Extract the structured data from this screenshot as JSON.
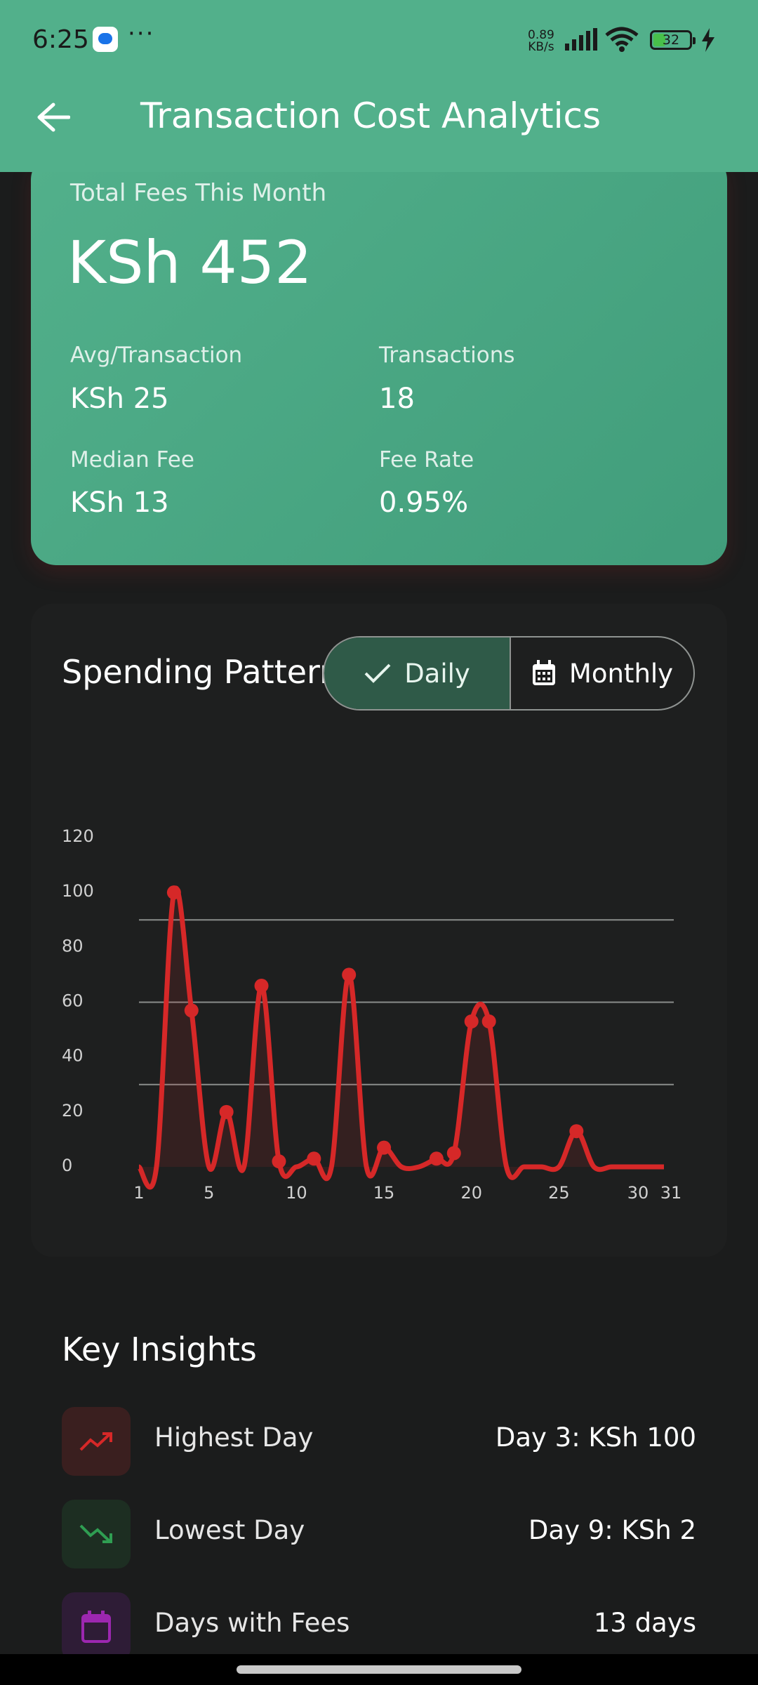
{
  "status_bar": {
    "time": "6:25",
    "more": "···",
    "net_speed_value": "0.89",
    "net_speed_unit": "KB/s",
    "battery": "32"
  },
  "header": {
    "title": "Transaction Cost Analytics"
  },
  "summary": {
    "total_label": "Total Fees This Month",
    "total_value": "KSh 452",
    "avg_label": "Avg/Transaction",
    "avg_value": "KSh 25",
    "count_label": "Transactions",
    "count_value": "18",
    "median_label": "Median Fee",
    "median_value": "KSh 13",
    "rate_label": "Fee Rate",
    "rate_value": "0.95%"
  },
  "spending": {
    "title": "Spending Pattern",
    "toggle": {
      "daily": "Daily",
      "monthly": "Monthly",
      "selected": "Daily"
    }
  },
  "chart_data": {
    "type": "line",
    "line_color": "#d62828",
    "ylim": [
      0,
      120
    ],
    "y_ticks": [
      0,
      20,
      40,
      60,
      80,
      100,
      120
    ],
    "x_ticks": [
      "1",
      "5",
      "10",
      "15",
      "20",
      "25",
      "30",
      "31"
    ],
    "gridlines": [
      30,
      60,
      90
    ],
    "series": [
      {
        "x": [
          1,
          2,
          3,
          4,
          5,
          6,
          7,
          8,
          9,
          10,
          11,
          12,
          13,
          14,
          15,
          16,
          17,
          18,
          19,
          20,
          21,
          22,
          23,
          24,
          25,
          26,
          27,
          28,
          29,
          30,
          31
        ],
        "values": [
          0,
          0,
          100,
          57,
          0,
          20,
          0,
          66,
          2,
          0,
          3,
          0,
          70,
          0,
          7,
          0,
          0,
          3,
          5,
          53,
          53,
          0,
          0,
          0,
          0,
          13,
          0,
          0,
          0,
          0,
          0
        ],
        "markers": [
          3,
          4,
          6,
          8,
          9,
          11,
          13,
          15,
          18,
          19,
          20,
          21,
          26
        ]
      }
    ]
  },
  "insights": {
    "title": "Key Insights",
    "items": [
      {
        "label": "Highest Day",
        "value": "Day 3: KSh 100"
      },
      {
        "label": "Lowest Day",
        "value": "Day 9: KSh 2"
      },
      {
        "label": "Days with Fees",
        "value": "13 days"
      }
    ]
  },
  "colors": {
    "header": "#52b08b",
    "accent_red": "#d62828",
    "accent_green": "#2f9e52",
    "accent_purple": "#9c27b0"
  }
}
